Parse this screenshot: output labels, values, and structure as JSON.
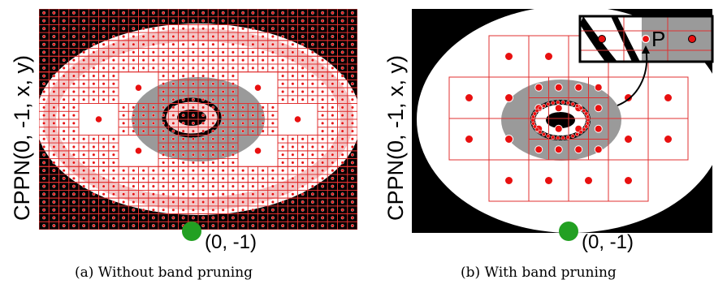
{
  "panels": [
    {
      "id": "a",
      "ylabel": "CPPN(0, -1, x, y)",
      "point_label": "(0, -1)",
      "caption": "(a) Without band pruning"
    },
    {
      "id": "b",
      "ylabel": "CPPN(0, -1, x, y)",
      "point_label": "(0, -1)",
      "caption": "(b) With band pruning",
      "inset_label": "P"
    }
  ],
  "colors": {
    "background": "#000000",
    "ring_white": "#ffffff",
    "band_gray": "#999999",
    "grid_line": "#e03030",
    "node": "#e81010",
    "source_point": "#22a022"
  }
}
